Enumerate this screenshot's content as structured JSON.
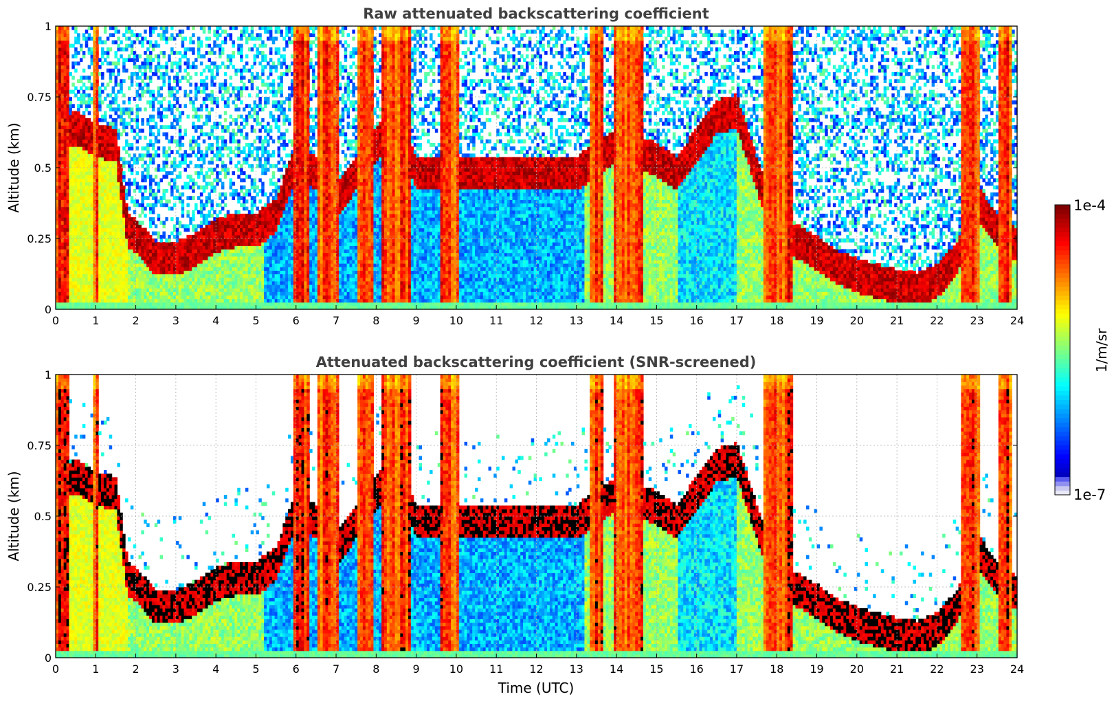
{
  "chart_data": [
    {
      "type": "heatmap",
      "title": "Raw attenuated backscattering coefficient",
      "xlabel": "",
      "ylabel": "Altitude (km)",
      "xlim": [
        0,
        24
      ],
      "ylim": [
        0,
        1
      ],
      "x_ticks": [
        0,
        1,
        2,
        3,
        4,
        5,
        6,
        7,
        8,
        9,
        10,
        11,
        12,
        13,
        14,
        15,
        16,
        17,
        18,
        19,
        20,
        21,
        22,
        23,
        24
      ],
      "y_ticks": [
        0,
        0.25,
        0.5,
        0.75,
        1
      ],
      "y_tick_labels": [
        "0",
        "0.25",
        "0.5",
        "0.75",
        "1"
      ],
      "grid": true,
      "screened": false,
      "colorscale": "jet, log10, 1e-7 to 1e-4"
    },
    {
      "type": "heatmap",
      "title": "Attenuated backscattering coefficient (SNR-screened)",
      "xlabel": "Time (UTC)",
      "ylabel": "Altitude (km)",
      "xlim": [
        0,
        24
      ],
      "ylim": [
        0,
        1
      ],
      "x_ticks": [
        0,
        1,
        2,
        3,
        4,
        5,
        6,
        7,
        8,
        9,
        10,
        11,
        12,
        13,
        14,
        15,
        16,
        17,
        18,
        19,
        20,
        21,
        22,
        23,
        24
      ],
      "y_ticks": [
        0,
        0.25,
        0.5,
        0.75,
        1
      ],
      "y_tick_labels": [
        "0",
        "0.25",
        "0.5",
        "0.75",
        "1"
      ],
      "grid": true,
      "screened": true,
      "colorscale": "jet, log10, 1e-7 to 1e-4"
    }
  ],
  "colorbar": {
    "min_label": "1e-7",
    "max_label": "1e-4",
    "unit_label": "1/m/sr",
    "placement": "right",
    "colormap": "jet"
  },
  "layer_profile": {
    "description_units": "time in UTC hours, altitude in km",
    "boundary_layer_top_km": [
      [
        0,
        0.62
      ],
      [
        0.5,
        0.66
      ],
      [
        1,
        0.62
      ],
      [
        1.5,
        0.6
      ],
      [
        1.8,
        0.3
      ],
      [
        2,
        0.28
      ],
      [
        2.5,
        0.2
      ],
      [
        3,
        0.2
      ],
      [
        3.5,
        0.23
      ],
      [
        4,
        0.28
      ],
      [
        4.5,
        0.3
      ],
      [
        5,
        0.3
      ],
      [
        5.5,
        0.35
      ],
      [
        6,
        0.55
      ],
      [
        6.5,
        0.5
      ],
      [
        7,
        0.4
      ],
      [
        7.5,
        0.5
      ],
      [
        8,
        0.6
      ],
      [
        8.5,
        0.7
      ],
      [
        9,
        0.5
      ],
      [
        10,
        0.5
      ],
      [
        11,
        0.5
      ],
      [
        12,
        0.5
      ],
      [
        13,
        0.5
      ],
      [
        14,
        0.6
      ],
      [
        15,
        0.55
      ],
      [
        15.5,
        0.5
      ],
      [
        16,
        0.6
      ],
      [
        16.5,
        0.7
      ],
      [
        17,
        0.72
      ],
      [
        17.5,
        0.5
      ],
      [
        18,
        0.3
      ],
      [
        18.5,
        0.26
      ],
      [
        19,
        0.22
      ],
      [
        19.5,
        0.17
      ],
      [
        20,
        0.14
      ],
      [
        20.5,
        0.12
      ],
      [
        21,
        0.1
      ],
      [
        21.5,
        0.09
      ],
      [
        22,
        0.12
      ],
      [
        22.5,
        0.2
      ],
      [
        23,
        0.4
      ],
      [
        23.5,
        0.3
      ],
      [
        24,
        0.25
      ]
    ]
  }
}
